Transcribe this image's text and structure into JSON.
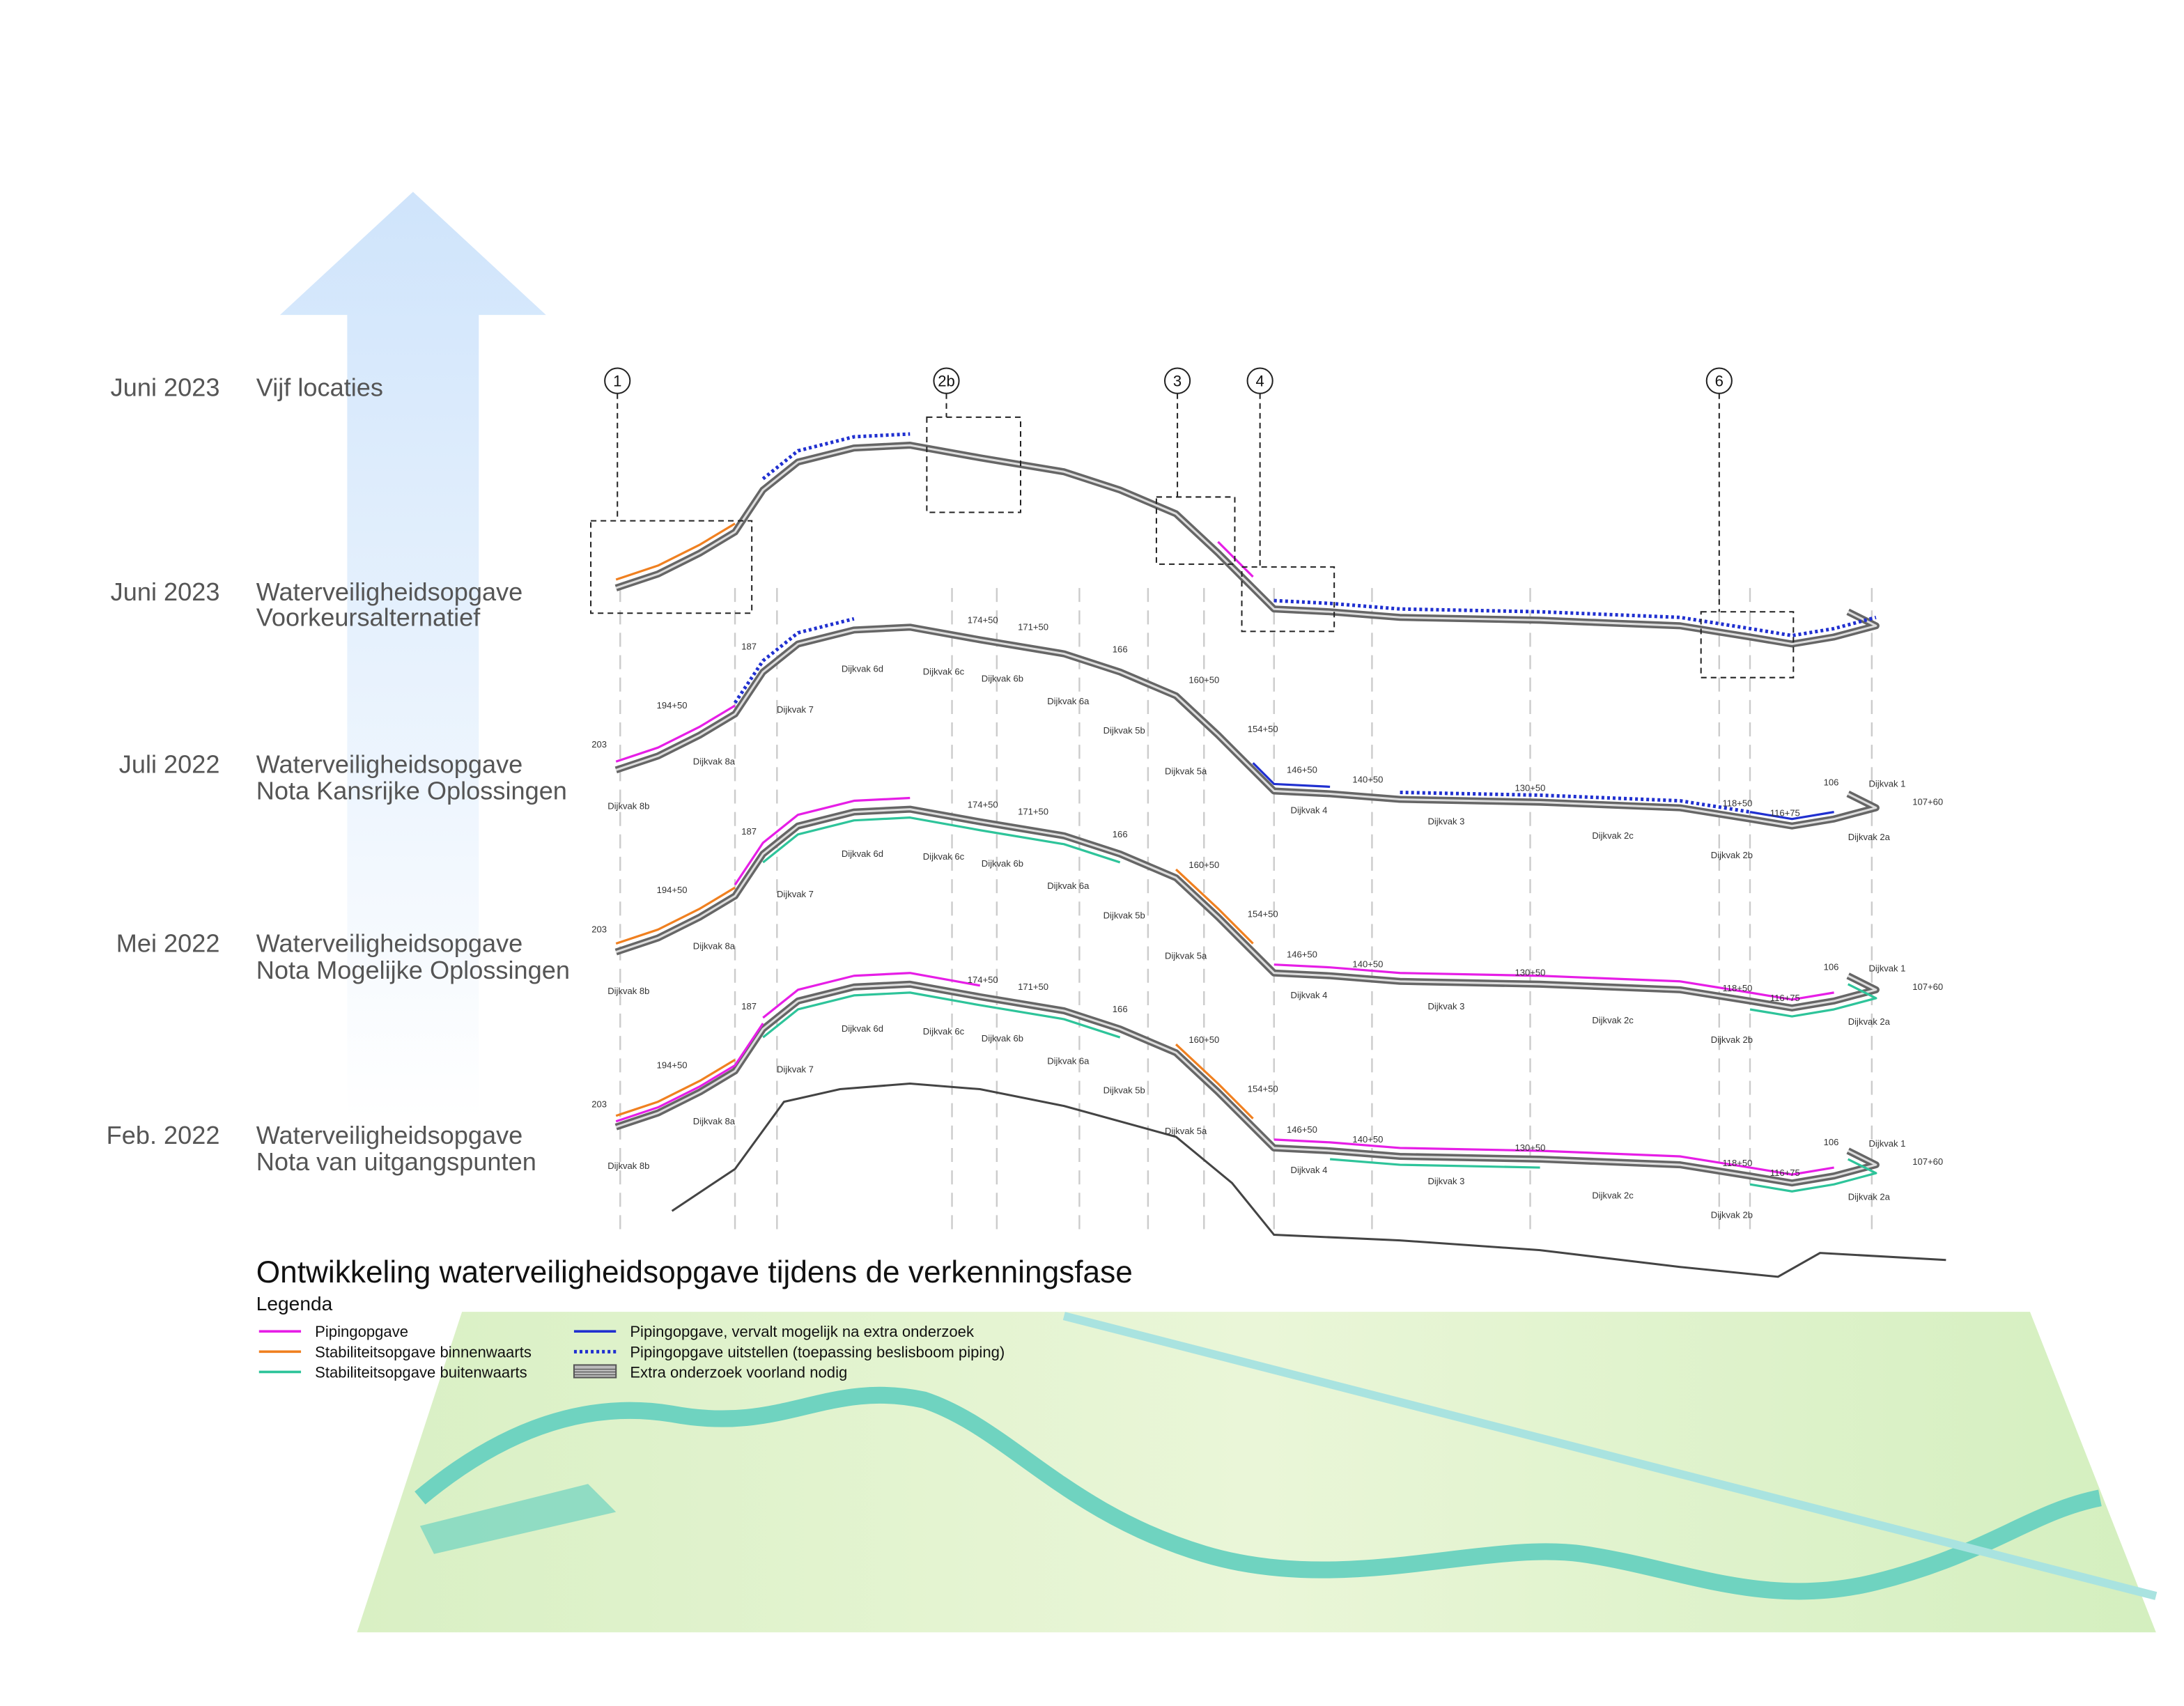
{
  "title": "Ontwikkeling waterveiligheidsopgave tijdens de verkenningsfase",
  "timeline": [
    {
      "date": "Juni 2023",
      "lines": [
        "Vijf locaties"
      ]
    },
    {
      "date": "Juni 2023",
      "lines": [
        "Waterveiligheidsopgave",
        "Voorkeursalternatief"
      ]
    },
    {
      "date": "Juli 2022",
      "lines": [
        "Waterveiligheidsopgave",
        "Nota Kansrijke Oplossingen"
      ]
    },
    {
      "date": "Mei 2022",
      "lines": [
        "Waterveiligheidsopgave",
        "Nota Mogelijke Oplossingen"
      ]
    },
    {
      "date": "Feb. 2022",
      "lines": [
        "Waterveiligheidsopgave",
        "Nota van uitgangspunten"
      ]
    }
  ],
  "locations": [
    "1",
    "2b",
    "3",
    "4",
    "6"
  ],
  "layers": [
    {
      "dijkvakken": [
        "Dijkvak 8b",
        "Dijkvak 8a",
        "Dijkvak 7",
        "Dijkvak 6d",
        "Dijkvak 6c",
        "Dijkvak 6b",
        "Dijkvak 6a",
        "Dijkvak 5b",
        "Dijkvak 5a",
        "Dijkvak 4",
        "Dijkvak 3",
        "Dijkvak 2c",
        "Dijkvak 2b",
        "Dijkvak 2a",
        "Dijkvak 1"
      ],
      "km": [
        "203",
        "194+50",
        "187",
        "174+50",
        "171+50",
        "166",
        "160+50",
        "154+50",
        "146+50",
        "140+50",
        "130+50",
        "118+50",
        "116+75",
        "106",
        "107+60"
      ]
    },
    {
      "dijkvakken": [
        "Dijkvak 8b",
        "Dijkvak 8a",
        "Dijkvak 7",
        "Dijkvak 6d",
        "Dijkvak 6c",
        "Dijkvak 6b",
        "Dijkvak 6a",
        "Dijkvak 5b",
        "Dijkvak 5a",
        "Dijkvak 4",
        "Dijkvak 3",
        "Dijkvak 2c",
        "Dijkvak 2b",
        "Dijkvak 2a",
        "Dijkvak 1"
      ],
      "km": [
        "203",
        "194+50",
        "187",
        "174+50",
        "171+50",
        "166",
        "160+50",
        "154+50",
        "146+50",
        "140+50",
        "130+50",
        "118+50",
        "116+75",
        "106",
        "107+60"
      ]
    },
    {
      "dijkvakken": [
        "Dijkvak 8b",
        "Dijkvak 8a",
        "Dijkvak 7",
        "Dijkvak 6d",
        "Dijkvak 6c",
        "Dijkvak 6b",
        "Dijkvak 6a",
        "Dijkvak 5b",
        "Dijkvak 5a",
        "Dijkvak 4",
        "Dijkvak 3",
        "Dijkvak 2c",
        "Dijkvak 2b",
        "Dijkvak 2a",
        "Dijkvak 1"
      ],
      "km": [
        "203",
        "194+50",
        "187",
        "174+50",
        "171+50",
        "166",
        "160+50",
        "154+50",
        "146+50",
        "140+50",
        "130+50",
        "118+50",
        "116+75",
        "106",
        "107+60"
      ]
    }
  ],
  "legend": {
    "heading": "Legenda",
    "items": [
      {
        "label": "Pipingopgave",
        "color": "#e61ee6",
        "style": "solid"
      },
      {
        "label": "Stabiliteitsopgave binnenwaarts",
        "color": "#f08020",
        "style": "solid"
      },
      {
        "label": "Stabiliteitsopgave buitenwaarts",
        "color": "#2ec49a",
        "style": "solid"
      },
      {
        "label": "Pipingopgave, vervalt mogelijk na extra onderzoek",
        "color": "#2030d0",
        "style": "solid"
      },
      {
        "label": "Pipingopgave uitstellen (toepassing beslisboom piping)",
        "color": "#2030d0",
        "style": "dotted"
      },
      {
        "label": "Extra onderzoek voorland nodig",
        "color": "#555555",
        "style": "hatch"
      }
    ]
  }
}
